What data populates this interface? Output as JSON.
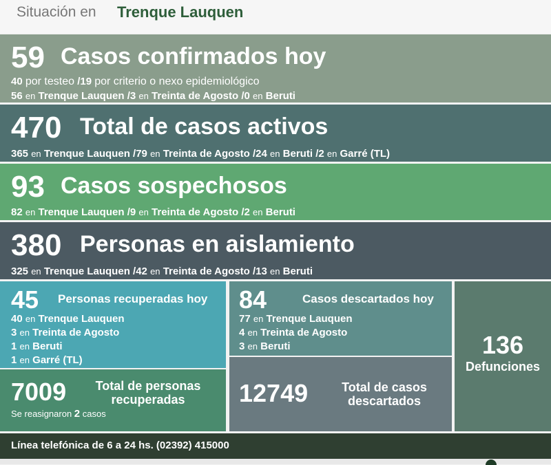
{
  "header": {
    "situacion": "Situación en",
    "location": "Trenque Lauquen"
  },
  "confirmados": {
    "number": "59",
    "title": "Casos confirmados hoy",
    "line1": [
      "40",
      "por testeo",
      "/19",
      "por criterio o nexo epidemiológico"
    ],
    "line2": [
      "56",
      "en",
      "Trenque Lauquen",
      "/3",
      "en",
      "Treinta de Agosto",
      "/0",
      "en",
      "Beruti"
    ]
  },
  "activos": {
    "number": "470",
    "title": "Total de casos activos",
    "line1": [
      "365",
      "en",
      "Trenque Lauquen",
      "/79",
      "en",
      "Treinta de Agosto",
      "/24",
      "en",
      "Beruti",
      "/2",
      "en",
      "Garré (TL)"
    ]
  },
  "sospechosos": {
    "number": "93",
    "title": "Casos sospechosos",
    "line1": [
      "82",
      "en",
      "Trenque Lauquen",
      "/9",
      "en",
      "Treinta de Agosto",
      "/2",
      "en",
      "Beruti"
    ]
  },
  "aislamiento": {
    "number": "380",
    "title": "Personas en aislamiento",
    "line1": [
      "325",
      "en",
      "Trenque Lauquen",
      "/42",
      "en",
      "Treinta de Agosto",
      "/13",
      "en",
      "Beruti"
    ]
  },
  "recuperados": {
    "number": "45",
    "title": "Personas recuperadas hoy",
    "rows": [
      {
        "n": "40",
        "en": "en",
        "place": "Trenque Lauquen"
      },
      {
        "n": "3",
        "en": "en",
        "place": "Treinta de Agosto"
      },
      {
        "n": "1",
        "en": "en",
        "place": "Beruti"
      },
      {
        "n": "1",
        "en": "en",
        "place": "Garré (TL)"
      }
    ]
  },
  "total_recuperados": {
    "number": "7009",
    "title_line1": "Total de personas",
    "title_line2": "recuperadas",
    "note": "Se reasignaron",
    "note_num": "2",
    "note_end": "casos"
  },
  "descartados": {
    "number": "84",
    "title": "Casos descartados hoy",
    "rows": [
      {
        "n": "77",
        "en": "en",
        "place": "Trenque Lauquen"
      },
      {
        "n": "4",
        "en": "en",
        "place": "Treinta de Agosto"
      },
      {
        "n": "3",
        "en": "en",
        "place": "Beruti"
      }
    ]
  },
  "total_descartados": {
    "number": "12749",
    "title_line1": "Total de casos",
    "title_line2": "descartados"
  },
  "defunciones": {
    "number": "136",
    "label": "Defunciones"
  },
  "footer": {
    "text": "Línea telefónica de 6 a 24 hs. (02392) 415000"
  },
  "colors": {
    "confirmados": "#8a9d8c",
    "activos": "#4f7070",
    "sospechosos": "#5fa872",
    "aislamiento": "#4c5a62",
    "recuperados": "#4ca7b3",
    "total_recuperados": "#4a8b6e",
    "descartados": "#5f8e8c",
    "total_descartados": "#6a7a80",
    "defunciones": "#5b7b6e",
    "footer": "#2f3f31",
    "header_location": "#2e5e3a"
  }
}
